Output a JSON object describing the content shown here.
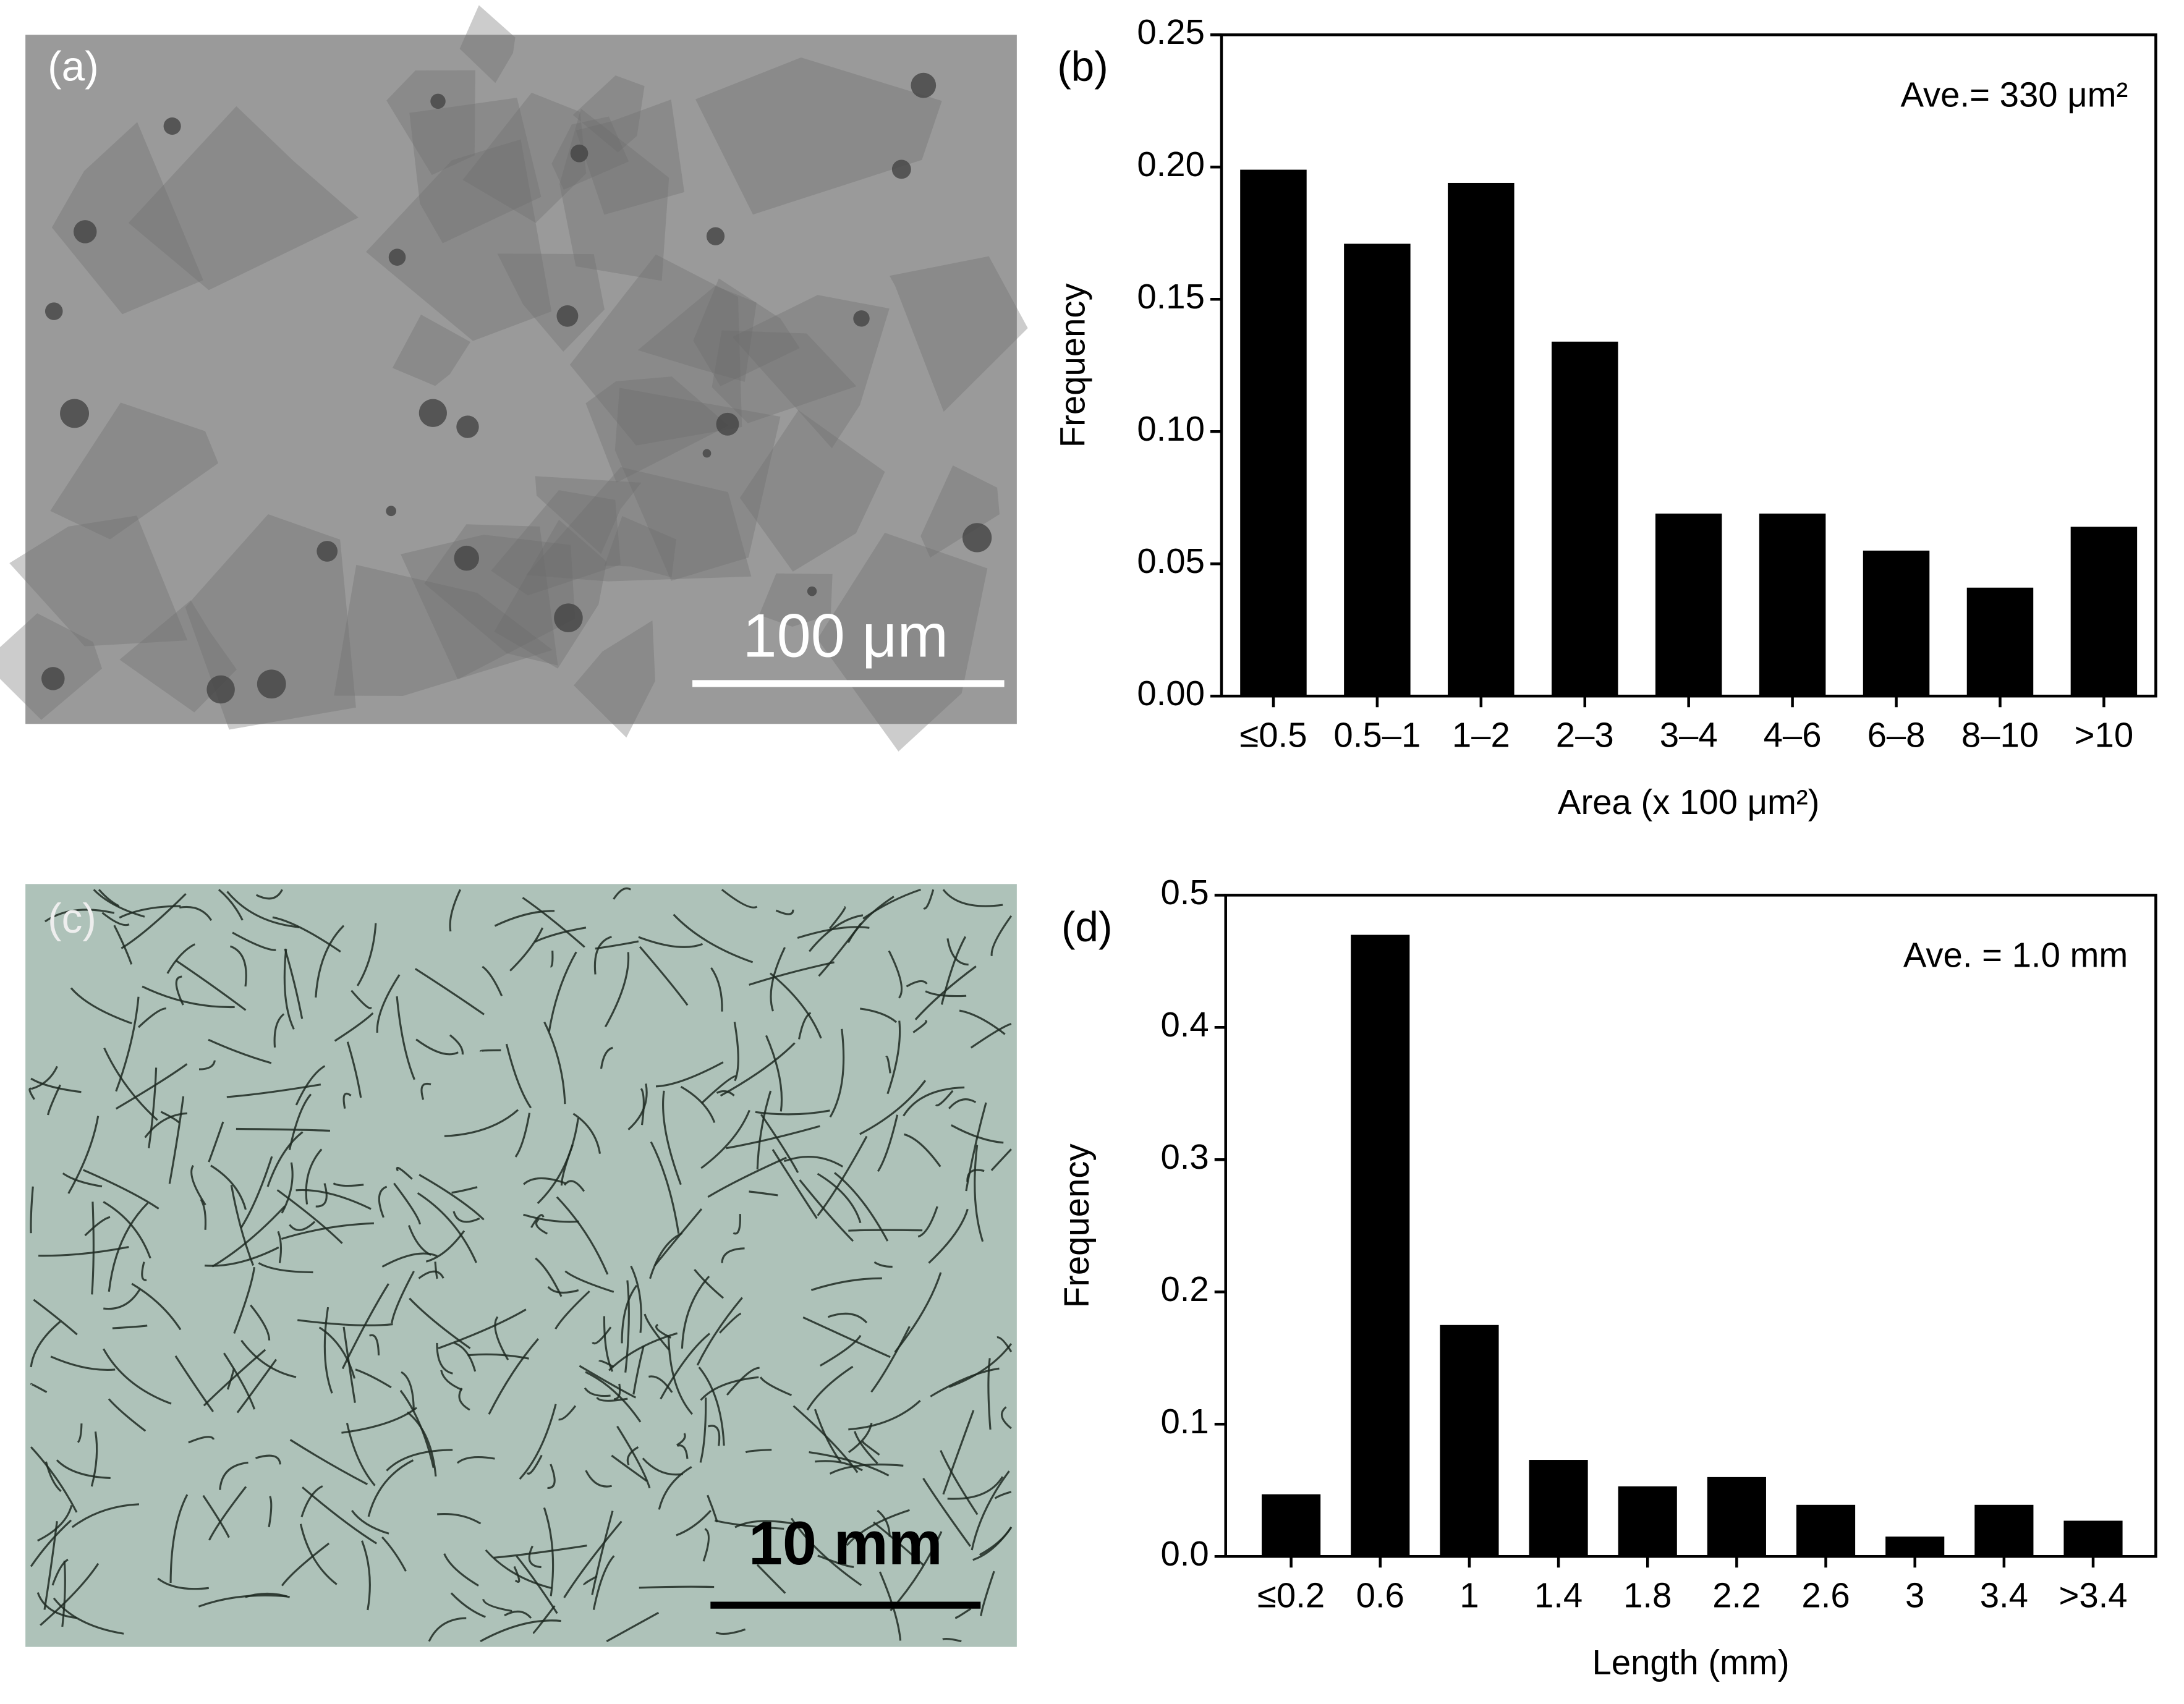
{
  "panels": {
    "a": {
      "label": "(a)",
      "scale_bar": "100 μm"
    },
    "c": {
      "label": "(c)",
      "scale_bar": "10 mm"
    }
  },
  "chart_data": [
    {
      "type": "bar",
      "panel_label": "(b)",
      "annotation": "Ave.= 330 μm²",
      "x_label": "Area (x 100 μm²)",
      "y_label": "Frequency",
      "categories": [
        "≤0.5",
        "0.5–1",
        "1–2",
        "2–3",
        "3–4",
        "4–6",
        "6–8",
        "8–10",
        ">10"
      ],
      "values": [
        0.199,
        0.171,
        0.194,
        0.134,
        0.069,
        0.069,
        0.055,
        0.041,
        0.064
      ],
      "color": "#000000",
      "ylim": [
        0,
        0.25
      ],
      "yticks": [
        {
          "value": 0,
          "label": "0.00"
        },
        {
          "value": 0.05,
          "label": "0.05"
        },
        {
          "value": 0.1,
          "label": "0.10"
        },
        {
          "value": 0.15,
          "label": "0.15"
        },
        {
          "value": 0.2,
          "label": "0.20"
        },
        {
          "value": 0.25,
          "label": "0.25"
        }
      ],
      "grid": false
    },
    {
      "type": "bar",
      "panel_label": "(d)",
      "annotation": "Ave. = 1.0 mm",
      "x_label": "Length (mm)",
      "y_label": "Frequency",
      "categories": [
        "≤0.2",
        "0.6",
        "1",
        "1.4",
        "1.8",
        "2.2",
        "2.6",
        "3",
        "3.4",
        ">3.4"
      ],
      "values": [
        0.047,
        0.47,
        0.175,
        0.073,
        0.053,
        0.06,
        0.039,
        0.015,
        0.039,
        0.027
      ],
      "color": "#000000",
      "ylim": [
        0,
        0.5
      ],
      "yticks": [
        {
          "value": 0,
          "label": "0.0"
        },
        0.1,
        0.2,
        0.3,
        0.4,
        0.5
      ],
      "grid": false
    }
  ]
}
